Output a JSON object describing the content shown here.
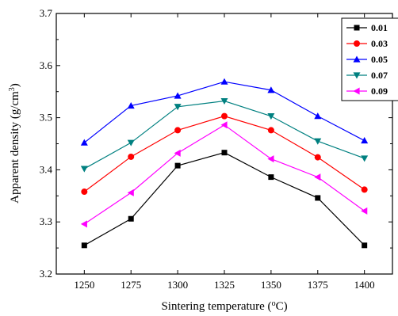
{
  "chart_data": {
    "type": "line",
    "xlabel_main": "Sintering temperature (",
    "xlabel_sup": "o",
    "xlabel_unit": "C)",
    "ylabel_main": "Apparent density (g/cm",
    "ylabel_sup": "3",
    "ylabel_end": ")",
    "x": [
      1250,
      1275,
      1300,
      1325,
      1350,
      1375,
      1400
    ],
    "xticks": [
      "1250",
      "1275",
      "1300",
      "1325",
      "1350",
      "1375",
      "1400"
    ],
    "xlim": [
      1235,
      1415
    ],
    "ylim": [
      3.2,
      3.7
    ],
    "yticks": [
      "3.2",
      "3.3",
      "3.4",
      "3.5",
      "3.6",
      "3.7"
    ],
    "legend_position": "top-right",
    "grid": false,
    "series": [
      {
        "name": "0.01",
        "color": "#000000",
        "marker": "square",
        "values": [
          3.255,
          3.306,
          3.408,
          3.433,
          3.386,
          3.346,
          3.255
        ]
      },
      {
        "name": "0.03",
        "color": "#ff0000",
        "marker": "circle",
        "values": [
          3.358,
          3.425,
          3.476,
          3.503,
          3.476,
          3.424,
          3.362
        ]
      },
      {
        "name": "0.05",
        "color": "#0000ff",
        "marker": "triangle-up",
        "values": [
          3.452,
          3.523,
          3.542,
          3.569,
          3.553,
          3.503,
          3.456
        ]
      },
      {
        "name": "0.07",
        "color": "#008080",
        "marker": "triangle-down",
        "values": [
          3.402,
          3.452,
          3.521,
          3.532,
          3.503,
          3.455,
          3.422
        ]
      },
      {
        "name": "0.09",
        "color": "#ff00ff",
        "marker": "triangle-left",
        "values": [
          3.296,
          3.356,
          3.432,
          3.486,
          3.421,
          3.386,
          3.321
        ]
      }
    ]
  }
}
